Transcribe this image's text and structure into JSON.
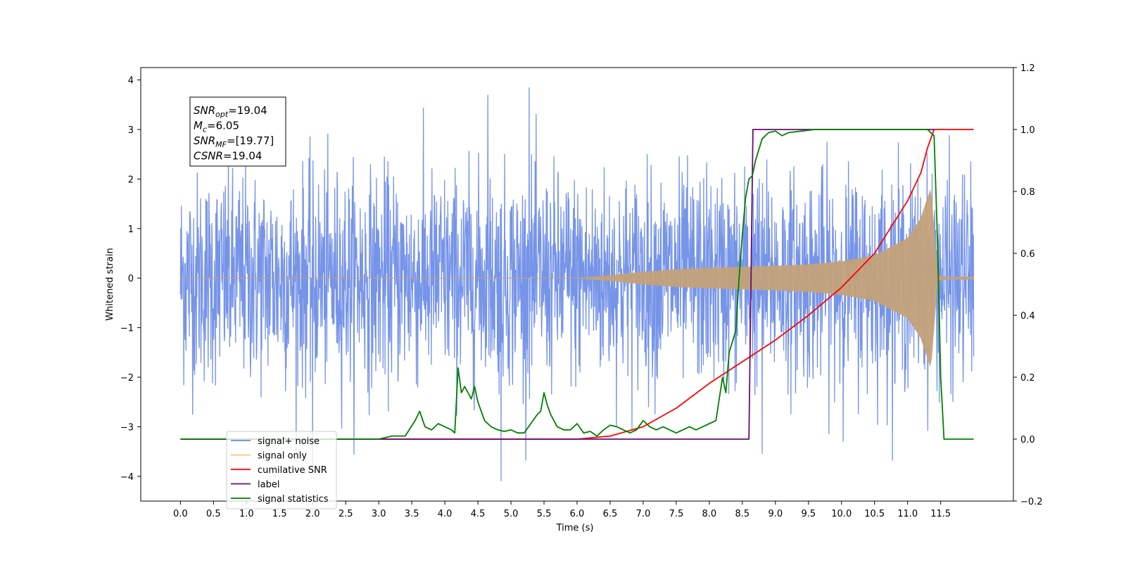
{
  "chart_data": {
    "type": "line",
    "title": "",
    "xlabel": "Time (s)",
    "ylabel": "Whitened strain",
    "xlim": [
      -0.6,
      12.6
    ],
    "ylim": [
      -4.5,
      4.25
    ],
    "y2lim": [
      -0.2,
      1.2
    ],
    "x_ticks": [
      0.0,
      0.5,
      1.0,
      1.5,
      2.0,
      2.5,
      3.0,
      3.5,
      4.0,
      4.5,
      5.0,
      5.5,
      6.0,
      6.5,
      7.0,
      7.5,
      8.0,
      8.5,
      9.0,
      9.5,
      10.0,
      10.5,
      11.0,
      11.5
    ],
    "x_tick_labels": [
      "0.0",
      "0.5",
      "1.0",
      "1.5",
      "2.0",
      "2.5",
      "3.0",
      "3.5",
      "4.0",
      "4.5",
      "5.0",
      "5.5",
      "6.0",
      "6.5",
      "7.0",
      "7.5",
      "8.0",
      "8.5",
      "9.0",
      "9.5",
      "10.0",
      "10.5",
      "11.0",
      "11.5"
    ],
    "y_ticks": [
      -4,
      -3,
      -2,
      -1,
      0,
      1,
      2,
      3,
      4
    ],
    "y_tick_labels": [
      "−4",
      "−3",
      "−2",
      "−1",
      "0",
      "1",
      "2",
      "3",
      "4"
    ],
    "y2_ticks": [
      -0.2,
      0.0,
      0.2,
      0.4,
      0.6,
      0.8,
      1.0,
      1.2
    ],
    "y2_tick_labels": [
      "−0.2",
      "0.0",
      "0.2",
      "0.4",
      "0.6",
      "0.8",
      "1.0",
      "1.2"
    ],
    "grid": false,
    "legend_position": "lower-left",
    "legend": [
      {
        "label": "signal+ noise",
        "color": "#6a8be6"
      },
      {
        "label": "signal only",
        "color": "#ffc46a"
      },
      {
        "label": "cumilative SNR",
        "color": "#ff0000"
      },
      {
        "label": "label",
        "color": "#6a0a7a"
      },
      {
        "label": "signal statistics",
        "color": "#008000"
      }
    ],
    "annotation": {
      "lines": [
        {
          "sym": "SNR",
          "sub": "opt",
          "val": "=19.04"
        },
        {
          "sym": "M",
          "sub": "c",
          "val": "=6.05"
        },
        {
          "sym": "SNR",
          "sub": "MF",
          "val": "=[19.77]"
        },
        {
          "sym": "CSNR",
          "sub": "",
          "val": "=19.04"
        }
      ]
    },
    "series": [
      {
        "name": "signal+ noise",
        "axis": "left",
        "color": "#6a8be6",
        "x_range": [
          0.0,
          12.0
        ],
        "envelope_abs": 2.3,
        "noise_sigma": 1.0,
        "peak_extremes": [
          3.85,
          -4.1
        ]
      },
      {
        "name": "signal only",
        "axis": "left",
        "color": "#c4a27a",
        "x_range": [
          0.0,
          12.0
        ],
        "envelope": {
          "x": [
            0.0,
            6.0,
            6.5,
            7.0,
            7.5,
            8.0,
            8.5,
            9.0,
            9.5,
            10.0,
            10.5,
            11.0,
            11.2,
            11.35,
            11.45,
            11.6,
            12.0
          ],
          "amp": [
            0.0,
            0.0,
            0.05,
            0.12,
            0.17,
            0.2,
            0.22,
            0.24,
            0.27,
            0.33,
            0.45,
            0.8,
            1.2,
            1.8,
            0.05,
            0.02,
            0.02
          ]
        }
      },
      {
        "name": "cumilative SNR",
        "axis": "right",
        "color": "#ff0000",
        "x": [
          0.0,
          6.0,
          6.5,
          7.0,
          7.5,
          8.0,
          8.5,
          9.0,
          9.5,
          10.0,
          10.5,
          11.0,
          11.2,
          11.3,
          11.4,
          12.0
        ],
        "y": [
          0.0,
          0.0,
          0.01,
          0.04,
          0.1,
          0.18,
          0.25,
          0.32,
          0.4,
          0.49,
          0.6,
          0.77,
          0.86,
          0.94,
          1.0,
          1.0
        ]
      },
      {
        "name": "label",
        "axis": "right",
        "color": "#6a0a7a",
        "x": [
          0.0,
          8.6,
          8.66,
          11.4
        ],
        "y": [
          0.0,
          0.0,
          1.0,
          1.0
        ]
      },
      {
        "name": "signal statistics",
        "axis": "right",
        "color": "#008000",
        "x": [
          0.0,
          3.0,
          3.2,
          3.4,
          3.55,
          3.62,
          3.7,
          3.8,
          3.9,
          4.0,
          4.1,
          4.15,
          4.2,
          4.25,
          4.3,
          4.35,
          4.4,
          4.45,
          4.5,
          4.6,
          4.7,
          4.8,
          4.9,
          5.0,
          5.1,
          5.2,
          5.3,
          5.4,
          5.45,
          5.5,
          5.55,
          5.6,
          5.7,
          5.8,
          5.9,
          6.0,
          6.1,
          6.2,
          6.3,
          6.4,
          6.5,
          6.6,
          6.7,
          6.8,
          6.9,
          7.0,
          7.1,
          7.2,
          7.3,
          7.4,
          7.5,
          7.6,
          7.7,
          7.8,
          7.9,
          8.0,
          8.1,
          8.2,
          8.25,
          8.3,
          8.4,
          8.45,
          8.5,
          8.55,
          8.6,
          8.65,
          8.7,
          8.8,
          8.9,
          9.0,
          9.1,
          9.2,
          9.4,
          9.6,
          9.8,
          10.0,
          11.0,
          11.3,
          11.4,
          11.45,
          11.5,
          11.55,
          12.0
        ],
        "y": [
          0.0,
          0.0,
          0.01,
          0.01,
          0.06,
          0.09,
          0.04,
          0.03,
          0.05,
          0.04,
          0.03,
          0.02,
          0.23,
          0.15,
          0.17,
          0.15,
          0.13,
          0.17,
          0.12,
          0.06,
          0.04,
          0.03,
          0.025,
          0.03,
          0.02,
          0.02,
          0.05,
          0.08,
          0.09,
          0.15,
          0.11,
          0.08,
          0.04,
          0.03,
          0.03,
          0.05,
          0.02,
          0.025,
          0.01,
          0.03,
          0.045,
          0.04,
          0.03,
          0.02,
          0.03,
          0.06,
          0.04,
          0.03,
          0.04,
          0.03,
          0.02,
          0.03,
          0.04,
          0.03,
          0.04,
          0.05,
          0.06,
          0.2,
          0.15,
          0.28,
          0.35,
          0.52,
          0.66,
          0.78,
          0.84,
          0.85,
          0.9,
          0.97,
          0.99,
          0.995,
          0.98,
          0.99,
          0.995,
          1.0,
          1.0,
          1.0,
          1.0,
          1.0,
          0.98,
          0.65,
          0.2,
          0.0,
          0.0
        ]
      }
    ]
  }
}
